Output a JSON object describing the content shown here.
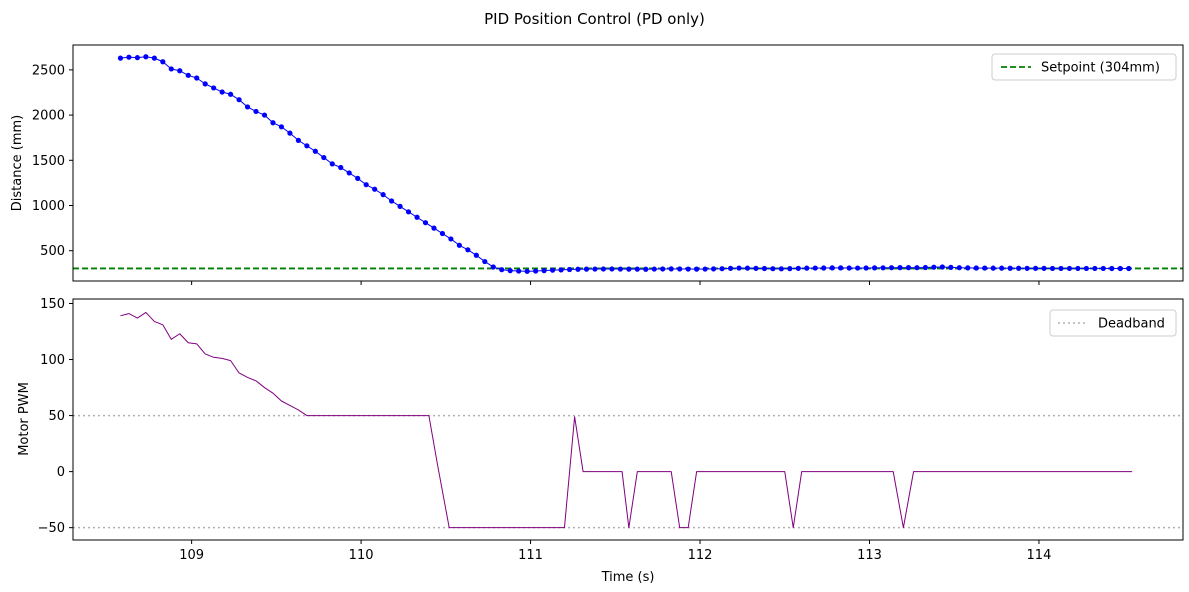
{
  "figure": {
    "title": "PID Position Control (PD only)"
  },
  "chart_data": [
    {
      "type": "line",
      "ylabel": "Distance (mm)",
      "xlabel": "",
      "xlim": [
        108.3,
        114.85
      ],
      "ylim": [
        165,
        2775
      ],
      "x_ticks": [
        "109",
        "110",
        "111",
        "112",
        "113",
        "114"
      ],
      "x_tick_values": [
        109,
        110,
        111,
        112,
        113,
        114
      ],
      "y_ticks": [
        "500",
        "1000",
        "1500",
        "2000",
        "2500"
      ],
      "y_tick_values": [
        500,
        1000,
        1500,
        2000,
        2500
      ],
      "grid": false,
      "legend": {
        "placement": "upper right",
        "entries": [
          "Setpoint (304mm)"
        ]
      },
      "series": [
        {
          "color": "#0000ff",
          "marker": "circle",
          "x": [
            108.58,
            108.63,
            108.68,
            108.73,
            108.78,
            108.83,
            108.88,
            108.93,
            108.98,
            109.03,
            109.08,
            109.13,
            109.18,
            109.23,
            109.28,
            109.33,
            109.38,
            109.43,
            109.48,
            109.53,
            109.58,
            109.63,
            109.68,
            109.73,
            109.78,
            109.83,
            109.88,
            109.93,
            109.98,
            110.03,
            110.08,
            110.13,
            110.18,
            110.23,
            110.28,
            110.33,
            110.38,
            110.43,
            110.48,
            110.53,
            110.58,
            110.63,
            110.68,
            110.73,
            110.78,
            110.83,
            110.88,
            110.93,
            110.98,
            111.03,
            111.08,
            111.13,
            111.18,
            111.23,
            111.28,
            111.33,
            111.38,
            111.43,
            111.48,
            111.53,
            111.58,
            111.63,
            111.68,
            111.73,
            111.78,
            111.83,
            111.88,
            111.93,
            111.98,
            112.03,
            112.08,
            112.13,
            112.18,
            112.23,
            112.28,
            112.33,
            112.38,
            112.43,
            112.48,
            112.53,
            112.58,
            112.63,
            112.68,
            112.73,
            112.78,
            112.83,
            112.88,
            112.93,
            112.98,
            113.03,
            113.08,
            113.13,
            113.18,
            113.23,
            113.28,
            113.33,
            113.38,
            113.43,
            113.48,
            113.53,
            113.58,
            113.63,
            113.68,
            113.73,
            113.78,
            113.83,
            113.88,
            113.93,
            113.98,
            114.03,
            114.08,
            114.13,
            114.18,
            114.23,
            114.28,
            114.33,
            114.38,
            114.43,
            114.48,
            114.53
          ],
          "y": [
            2630,
            2640,
            2635,
            2645,
            2630,
            2590,
            2510,
            2490,
            2440,
            2410,
            2345,
            2300,
            2255,
            2230,
            2170,
            2090,
            2040,
            2000,
            1915,
            1870,
            1800,
            1720,
            1660,
            1600,
            1530,
            1460,
            1420,
            1360,
            1300,
            1230,
            1180,
            1120,
            1050,
            990,
            930,
            870,
            810,
            750,
            690,
            630,
            560,
            510,
            450,
            380,
            320,
            290,
            280,
            275,
            272,
            275,
            280,
            285,
            288,
            292,
            295,
            296,
            297,
            298,
            298,
            297,
            296,
            296,
            295,
            297,
            298,
            299,
            298,
            297,
            296,
            297,
            299,
            301,
            305,
            308,
            307,
            305,
            303,
            301,
            300,
            302,
            305,
            307,
            308,
            309,
            310,
            310,
            309,
            308,
            309,
            310,
            311,
            312,
            313,
            313,
            312,
            314,
            318,
            320,
            316,
            312,
            310,
            309,
            308,
            307,
            307,
            306,
            306,
            305,
            305,
            305,
            304,
            304,
            304,
            304,
            304,
            304,
            304,
            303,
            303,
            303
          ]
        },
        {
          "name": "Setpoint (304mm)",
          "color": "#008000",
          "style": "dashed",
          "horizontal_line": 304
        }
      ]
    },
    {
      "type": "line",
      "ylabel": "Motor PWM",
      "xlabel": "Time (s)",
      "xlim": [
        108.3,
        114.85
      ],
      "ylim": [
        -61,
        154
      ],
      "x_ticks": [
        "109",
        "110",
        "111",
        "112",
        "113",
        "114"
      ],
      "x_tick_values": [
        109,
        110,
        111,
        112,
        113,
        114
      ],
      "y_ticks": [
        "−50",
        "0",
        "50",
        "100",
        "150"
      ],
      "y_tick_values": [
        -50,
        0,
        50,
        100,
        150
      ],
      "grid": false,
      "legend": {
        "placement": "upper right",
        "entries": [
          "Deadband"
        ]
      },
      "series": [
        {
          "color": "#800080",
          "x": [
            108.58,
            108.63,
            108.68,
            108.73,
            108.78,
            108.83,
            108.88,
            108.93,
            108.98,
            109.03,
            109.08,
            109.13,
            109.18,
            109.23,
            109.28,
            109.33,
            109.38,
            109.43,
            109.48,
            109.53,
            109.58,
            109.63,
            109.68,
            109.73,
            109.78,
            109.8,
            110.4,
            110.45,
            110.52,
            111.15,
            111.2,
            111.26,
            111.31,
            111.54,
            111.58,
            111.63,
            111.83,
            111.88,
            111.93,
            111.98,
            112.5,
            112.55,
            112.6,
            113.14,
            113.2,
            113.26,
            114.55
          ],
          "y": [
            139,
            141,
            137,
            142,
            134,
            131,
            118,
            123,
            115,
            114,
            105,
            102,
            101,
            99,
            88,
            84,
            81,
            75,
            70,
            63,
            59,
            55,
            50,
            50,
            50,
            50,
            50,
            7,
            -50,
            -50,
            -50,
            49,
            0,
            0,
            -50,
            0,
            0,
            -50,
            -50,
            0,
            0,
            -50,
            0,
            0,
            -50,
            0,
            0
          ]
        },
        {
          "name": "Deadband",
          "color": "#b0b0b0",
          "style": "dotted",
          "horizontal_lines": [
            50,
            -50
          ]
        }
      ]
    }
  ]
}
